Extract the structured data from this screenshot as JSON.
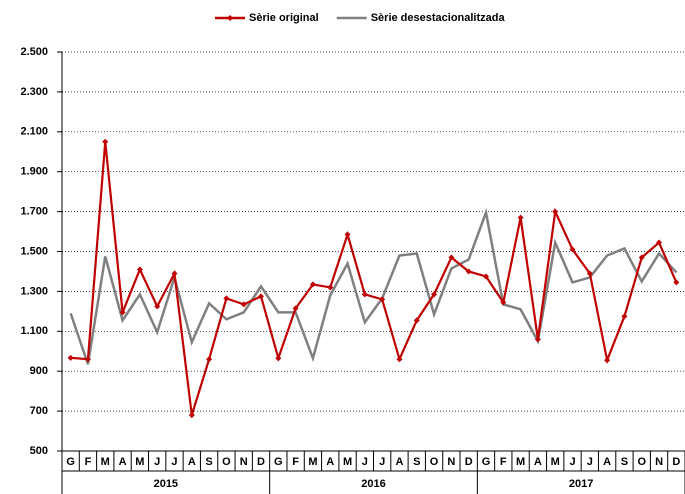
{
  "chart_data": {
    "type": "line",
    "categories": [
      "G",
      "F",
      "M",
      "A",
      "M",
      "J",
      "J",
      "A",
      "S",
      "O",
      "N",
      "D",
      "G",
      "F",
      "M",
      "A",
      "M",
      "J",
      "J",
      "A",
      "S",
      "O",
      "N",
      "D",
      "G",
      "F",
      "M",
      "A",
      "M",
      "J",
      "J",
      "A",
      "S",
      "O",
      "N",
      "D"
    ],
    "years": [
      "2015",
      "2016",
      "2017"
    ],
    "series": [
      {
        "name": "Sèrie original",
        "color": "#c00000",
        "values": [
          967,
          960,
          2050,
          1195,
          1410,
          1225,
          1390,
          680,
          960,
          1265,
          1235,
          1275,
          965,
          1215,
          1335,
          1320,
          1585,
          1285,
          1260,
          960,
          1155,
          1285,
          1470,
          1400,
          1375,
          1245,
          1670,
          1060,
          1700,
          1510,
          1390,
          955,
          1175,
          1470,
          1545,
          1345
        ]
      },
      {
        "name": "Sèrie desestacionalitzada",
        "color": "#808080",
        "values": [
          1190,
          935,
          1475,
          1155,
          1285,
          1095,
          1370,
          1045,
          1240,
          1160,
          1195,
          1325,
          1195,
          1195,
          965,
          1280,
          1440,
          1145,
          1265,
          1480,
          1490,
          1185,
          1415,
          1460,
          1695,
          1235,
          1210,
          1050,
          1545,
          1345,
          1370,
          1480,
          1515,
          1350,
          1490,
          1395
        ]
      }
    ],
    "ylim": [
      500,
      2500
    ],
    "yticks": [
      500,
      700,
      900,
      {
        "value": 1100,
        "label": "1.100"
      },
      {
        "value": 1300,
        "label": "1.300"
      },
      {
        "value": 1500,
        "label": "1.500"
      },
      {
        "value": 1700,
        "label": "1.700"
      },
      {
        "value": 1900,
        "label": "1.900"
      },
      {
        "value": 2100,
        "label": "2.100"
      },
      {
        "value": 2300,
        "label": "2.300"
      },
      {
        "value": 2500,
        "label": "2.500"
      }
    ],
    "grid": true
  }
}
